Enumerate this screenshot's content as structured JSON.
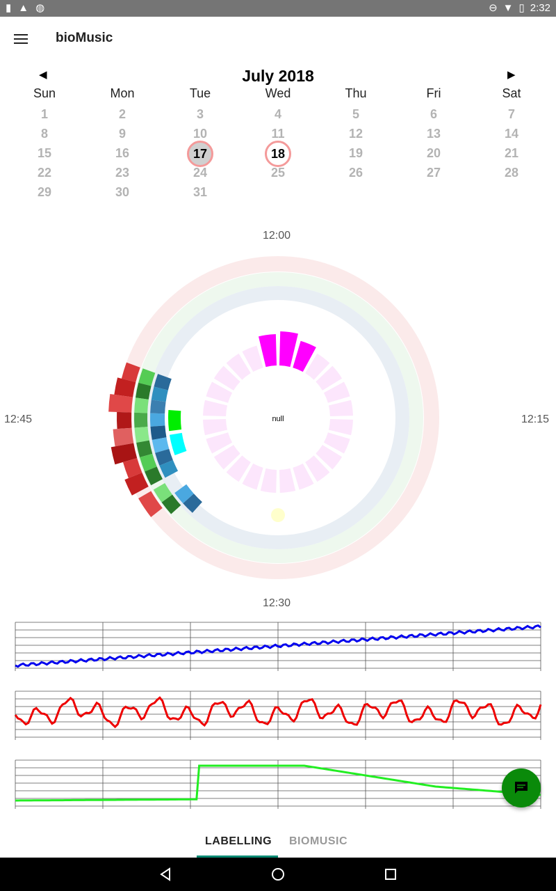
{
  "status_bar": {
    "time": "2:32",
    "icons_left": [
      "sim-alert-icon",
      "warning-icon",
      "globe-icon"
    ],
    "icons_right": [
      "dnd-icon",
      "wifi-icon",
      "battery-icon"
    ]
  },
  "app_bar": {
    "title": "bioMusic"
  },
  "calendar": {
    "month_title": "July 2018",
    "weekdays": [
      "Sun",
      "Mon",
      "Tue",
      "Wed",
      "Thu",
      "Fri",
      "Sat"
    ],
    "weeks": [
      [
        "1",
        "2",
        "3",
        "4",
        "5",
        "6",
        "7"
      ],
      [
        "8",
        "9",
        "10",
        "11",
        "12",
        "13",
        "14"
      ],
      [
        "15",
        "16",
        "17",
        "18",
        "19",
        "20",
        "21"
      ],
      [
        "22",
        "23",
        "24",
        "25",
        "26",
        "27",
        "28"
      ],
      [
        "29",
        "30",
        "31",
        "",
        "",
        "",
        ""
      ]
    ],
    "selected_days": [
      "17",
      "18"
    ],
    "today": "17"
  },
  "clock": {
    "top": "12:00",
    "right": "12:15",
    "bottom": "12:30",
    "left": "12:45",
    "center": "null"
  },
  "tabs": [
    {
      "label": "LABELLING",
      "active": true
    },
    {
      "label": "BIOMUSIC",
      "active": false
    }
  ],
  "colors": {
    "accent": "#0a8a74",
    "fab": "#0a8a0a",
    "series_blue": "#0000ee",
    "series_red": "#ee0000",
    "series_green": "#22ee22",
    "ring_red": "#fbeaea",
    "ring_green": "#eef8ee",
    "ring_blue": "#e8eef4",
    "magenta": "#ff00ff"
  }
}
